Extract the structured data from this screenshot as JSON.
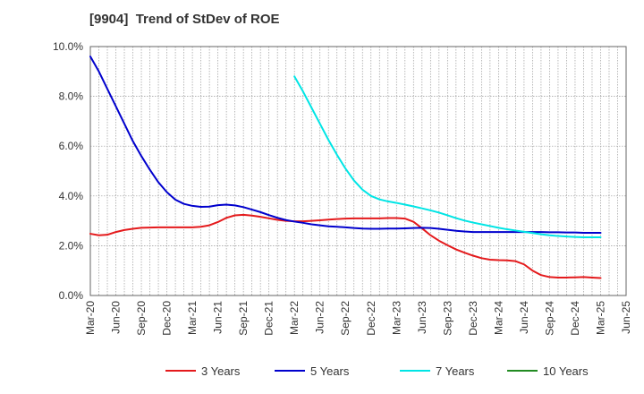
{
  "chart_data": {
    "type": "line",
    "title": "[9904]  Trend of StDev of ROE",
    "xlabel": "",
    "ylabel": "",
    "x_ticks": [
      "Mar-20",
      "Jun-20",
      "Sep-20",
      "Dec-20",
      "Mar-21",
      "Jun-21",
      "Sep-21",
      "Dec-21",
      "Mar-22",
      "Jun-22",
      "Sep-22",
      "Dec-22",
      "Mar-23",
      "Jun-23",
      "Sep-23",
      "Dec-23",
      "Mar-24",
      "Jun-24",
      "Sep-24",
      "Dec-24",
      "Mar-25",
      "Jun-25"
    ],
    "y_ticks": [
      "0.0%",
      "2.0%",
      "4.0%",
      "6.0%",
      "8.0%",
      "10.0%"
    ],
    "ylim": [
      0,
      10
    ],
    "grid": true,
    "legend_position": "bottom",
    "series": [
      {
        "name": "3 Years",
        "color": "#e41a1c",
        "x": [
          "Mar-20",
          "Apr-20",
          "May-20",
          "Jun-20",
          "Jul-20",
          "Aug-20",
          "Sep-20",
          "Oct-20",
          "Nov-20",
          "Dec-20",
          "Jan-21",
          "Feb-21",
          "Mar-21",
          "Apr-21",
          "May-21",
          "Jun-21",
          "Jul-21",
          "Aug-21",
          "Sep-21",
          "Oct-21",
          "Nov-21",
          "Dec-21",
          "Jan-22",
          "Feb-22",
          "Mar-22",
          "Apr-22",
          "May-22",
          "Jun-22",
          "Jul-22",
          "Aug-22",
          "Sep-22",
          "Oct-22",
          "Nov-22",
          "Dec-22",
          "Jan-23",
          "Feb-23",
          "Mar-23",
          "Apr-23",
          "May-23",
          "Jun-23",
          "Jul-23",
          "Aug-23",
          "Sep-23",
          "Oct-23",
          "Nov-23",
          "Dec-23",
          "Jan-24",
          "Feb-24",
          "Mar-24",
          "Apr-24",
          "May-24",
          "Jun-24",
          "Jul-24",
          "Aug-24",
          "Sep-24",
          "Oct-24",
          "Nov-24",
          "Dec-24",
          "Jan-25",
          "Feb-25",
          "Mar-25"
        ],
        "values": [
          2.48,
          2.42,
          2.44,
          2.55,
          2.63,
          2.68,
          2.72,
          2.73,
          2.74,
          2.74,
          2.74,
          2.74,
          2.74,
          2.76,
          2.82,
          2.95,
          3.12,
          3.22,
          3.24,
          3.21,
          3.16,
          3.1,
          3.04,
          3.0,
          2.98,
          2.98,
          3.0,
          3.02,
          3.05,
          3.07,
          3.09,
          3.1,
          3.1,
          3.1,
          3.1,
          3.11,
          3.11,
          3.09,
          2.96,
          2.7,
          2.42,
          2.2,
          2.02,
          1.85,
          1.72,
          1.6,
          1.5,
          1.44,
          1.42,
          1.41,
          1.38,
          1.25,
          1.0,
          0.82,
          0.74,
          0.72,
          0.72,
          0.73,
          0.74,
          0.72,
          0.7
        ]
      },
      {
        "name": "5 Years",
        "color": "#0000cd",
        "x": [
          "Mar-20",
          "Apr-20",
          "May-20",
          "Jun-20",
          "Jul-20",
          "Aug-20",
          "Sep-20",
          "Oct-20",
          "Nov-20",
          "Dec-20",
          "Jan-21",
          "Feb-21",
          "Mar-21",
          "Apr-21",
          "May-21",
          "Jun-21",
          "Jul-21",
          "Aug-21",
          "Sep-21",
          "Oct-21",
          "Nov-21",
          "Dec-21",
          "Jan-22",
          "Feb-22",
          "Mar-22",
          "Apr-22",
          "May-22",
          "Jun-22",
          "Jul-22",
          "Aug-22",
          "Sep-22",
          "Oct-22",
          "Nov-22",
          "Dec-22",
          "Jan-23",
          "Feb-23",
          "Mar-23",
          "Apr-23",
          "May-23",
          "Jun-23",
          "Jul-23",
          "Aug-23",
          "Sep-23",
          "Oct-23",
          "Nov-23",
          "Dec-23",
          "Jan-24",
          "Feb-24",
          "Mar-24",
          "Apr-24",
          "May-24",
          "Jun-24",
          "Jul-24",
          "Aug-24",
          "Sep-24",
          "Oct-24",
          "Nov-24",
          "Dec-24",
          "Jan-25",
          "Feb-25",
          "Mar-25"
        ],
        "values": [
          9.6,
          9.0,
          8.3,
          7.6,
          6.9,
          6.2,
          5.6,
          5.05,
          4.55,
          4.15,
          3.85,
          3.68,
          3.6,
          3.56,
          3.57,
          3.63,
          3.65,
          3.62,
          3.55,
          3.45,
          3.35,
          3.23,
          3.12,
          3.03,
          2.97,
          2.92,
          2.86,
          2.82,
          2.78,
          2.76,
          2.74,
          2.71,
          2.69,
          2.68,
          2.68,
          2.69,
          2.69,
          2.7,
          2.71,
          2.72,
          2.71,
          2.68,
          2.64,
          2.6,
          2.57,
          2.55,
          2.55,
          2.55,
          2.55,
          2.55,
          2.55,
          2.55,
          2.55,
          2.55,
          2.54,
          2.54,
          2.53,
          2.53,
          2.52,
          2.52,
          2.52
        ]
      },
      {
        "name": "7 Years",
        "color": "#00e5e5",
        "x": [
          "Mar-22",
          "Apr-22",
          "May-22",
          "Jun-22",
          "Jul-22",
          "Aug-22",
          "Sep-22",
          "Oct-22",
          "Nov-22",
          "Dec-22",
          "Jan-23",
          "Feb-23",
          "Mar-23",
          "Apr-23",
          "May-23",
          "Jun-23",
          "Jul-23",
          "Aug-23",
          "Sep-23",
          "Oct-23",
          "Nov-23",
          "Dec-23",
          "Jan-24",
          "Feb-24",
          "Mar-24",
          "Apr-24",
          "May-24",
          "Jun-24",
          "Jul-24",
          "Aug-24",
          "Sep-24",
          "Oct-24",
          "Nov-24",
          "Dec-24",
          "Jan-25",
          "Feb-25",
          "Mar-25"
        ],
        "values": [
          8.8,
          8.2,
          7.55,
          6.9,
          6.25,
          5.65,
          5.1,
          4.62,
          4.25,
          4.0,
          3.86,
          3.78,
          3.72,
          3.65,
          3.58,
          3.5,
          3.42,
          3.33,
          3.22,
          3.11,
          3.01,
          2.93,
          2.86,
          2.79,
          2.72,
          2.66,
          2.61,
          2.56,
          2.51,
          2.46,
          2.42,
          2.39,
          2.37,
          2.35,
          2.34,
          2.34,
          2.34
        ]
      },
      {
        "name": "10 Years",
        "color": "#228b22",
        "x": [],
        "values": []
      }
    ]
  }
}
